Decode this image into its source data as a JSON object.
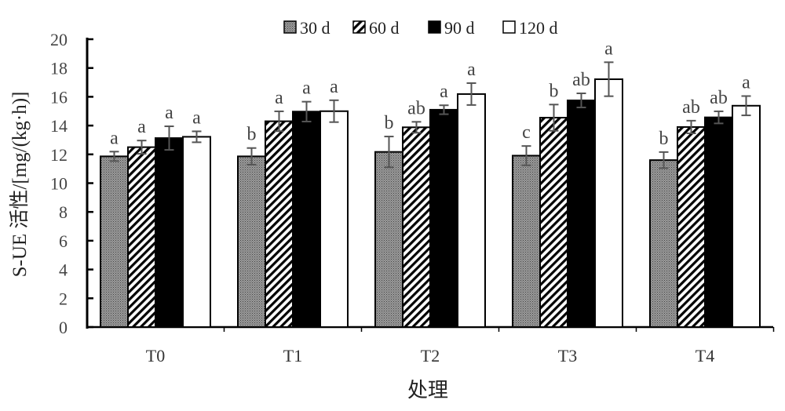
{
  "chart_data": {
    "type": "bar",
    "title": "",
    "xlabel": "处理",
    "ylabel": "S-UE 活性/[mg/(kg·h)]",
    "ylim": [
      0,
      20
    ],
    "yticks": [
      0,
      2,
      4,
      6,
      8,
      10,
      12,
      14,
      16,
      18,
      20
    ],
    "grid": false,
    "legend_position": "top",
    "categories": [
      "T0",
      "T1",
      "T2",
      "T3",
      "T4"
    ],
    "series": [
      {
        "name": "30 d",
        "fill": "dotted-gray",
        "values": [
          11.86,
          11.86,
          12.17,
          11.91,
          11.6
        ],
        "errors": [
          0.33,
          0.58,
          1.07,
          0.67,
          0.56
        ],
        "letters": [
          "a",
          "b",
          "b",
          "c",
          "b"
        ]
      },
      {
        "name": "60 d",
        "fill": "diagonal-hatch",
        "values": [
          12.5,
          14.3,
          13.88,
          14.55,
          13.9
        ],
        "errors": [
          0.46,
          0.69,
          0.38,
          0.91,
          0.44
        ],
        "letters": [
          "a",
          "a",
          "ab",
          "b",
          "ab"
        ]
      },
      {
        "name": "90 d",
        "fill": "#000000",
        "values": [
          13.13,
          14.97,
          15.1,
          15.75,
          14.57
        ],
        "errors": [
          0.82,
          0.69,
          0.31,
          0.49,
          0.42
        ],
        "letters": [
          "a",
          "a",
          "a",
          "ab",
          "ab"
        ]
      },
      {
        "name": "120 d",
        "fill": "#ffffff",
        "values": [
          13.22,
          15.0,
          16.19,
          17.22,
          15.38
        ],
        "errors": [
          0.38,
          0.76,
          0.76,
          1.18,
          0.67
        ],
        "letters": [
          "a",
          "a",
          "a",
          "a",
          "a"
        ]
      }
    ]
  }
}
